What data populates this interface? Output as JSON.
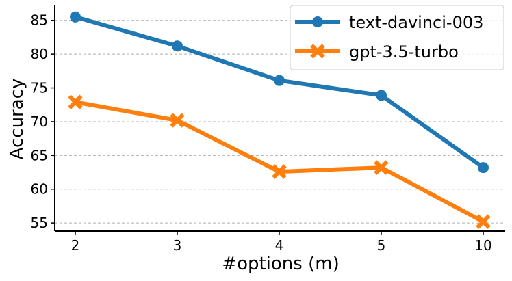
{
  "chart_data": {
    "type": "line",
    "title": "",
    "xlabel": "#options (m)",
    "ylabel": "Accuracy",
    "categories": [
      "2",
      "3",
      "4",
      "5",
      "10"
    ],
    "ylim": [
      53.8,
      87.2
    ],
    "yticks": [
      55,
      60,
      65,
      70,
      75,
      80,
      85
    ],
    "grid": "horizontal dashed",
    "legend_position": "top-right",
    "series": [
      {
        "name": "text-davinci-003",
        "values": [
          85.5,
          81.2,
          76.1,
          73.9,
          63.2
        ],
        "color": "#1f77b4",
        "marker": "circle"
      },
      {
        "name": "gpt-3.5-turbo",
        "values": [
          72.9,
          70.2,
          62.6,
          63.2,
          55.2
        ],
        "color": "#ff7f0e",
        "marker": "x"
      }
    ]
  }
}
